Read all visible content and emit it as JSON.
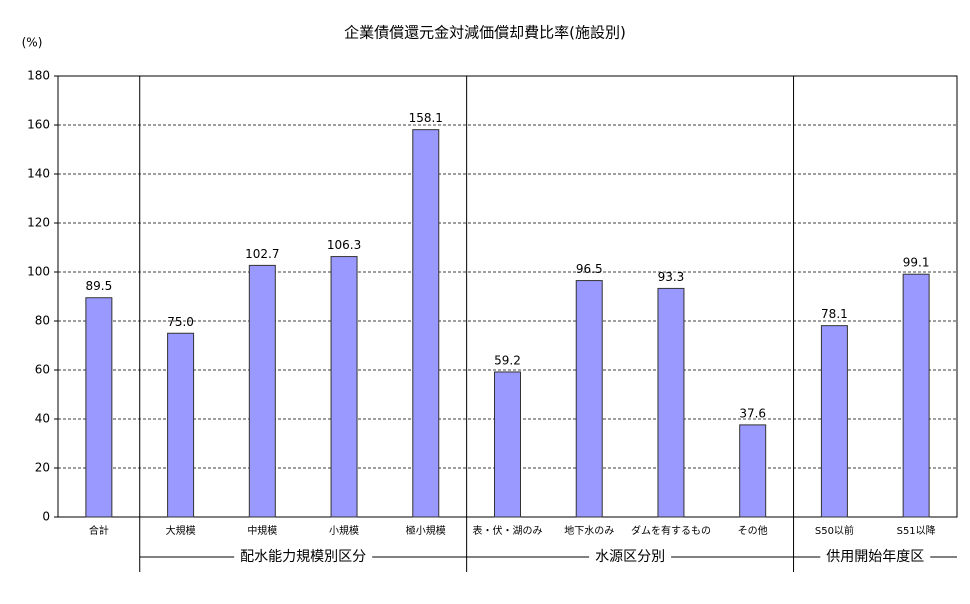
{
  "chart_data": {
    "type": "bar",
    "title": "企業債償還元金対減価償却費比率(施設別)",
    "y_unit": "(%)",
    "categories": [
      "合計",
      "大規模",
      "中規模",
      "小規模",
      "極小規模",
      "表・伏・湖のみ",
      "地下水のみ",
      "ダムを有するもの",
      "その他",
      "S50以前",
      "S51以降"
    ],
    "values": [
      89.5,
      75.0,
      102.7,
      106.3,
      158.1,
      59.2,
      96.5,
      93.3,
      37.6,
      78.1,
      99.1
    ],
    "value_labels": [
      "89.5",
      "75.0",
      "102.7",
      "106.3",
      "158.1",
      "59.2",
      "96.5",
      "93.3",
      "37.6",
      "78.1",
      "99.1"
    ],
    "group_labels": [
      "配水能力規模別区分",
      "水源区分別",
      "供用開始年度区"
    ],
    "color": "#9999ff",
    "ylim": [
      0,
      180
    ],
    "yticks": [
      0,
      20,
      40,
      60,
      80,
      100,
      120,
      140,
      160,
      180
    ],
    "grid": true
  }
}
